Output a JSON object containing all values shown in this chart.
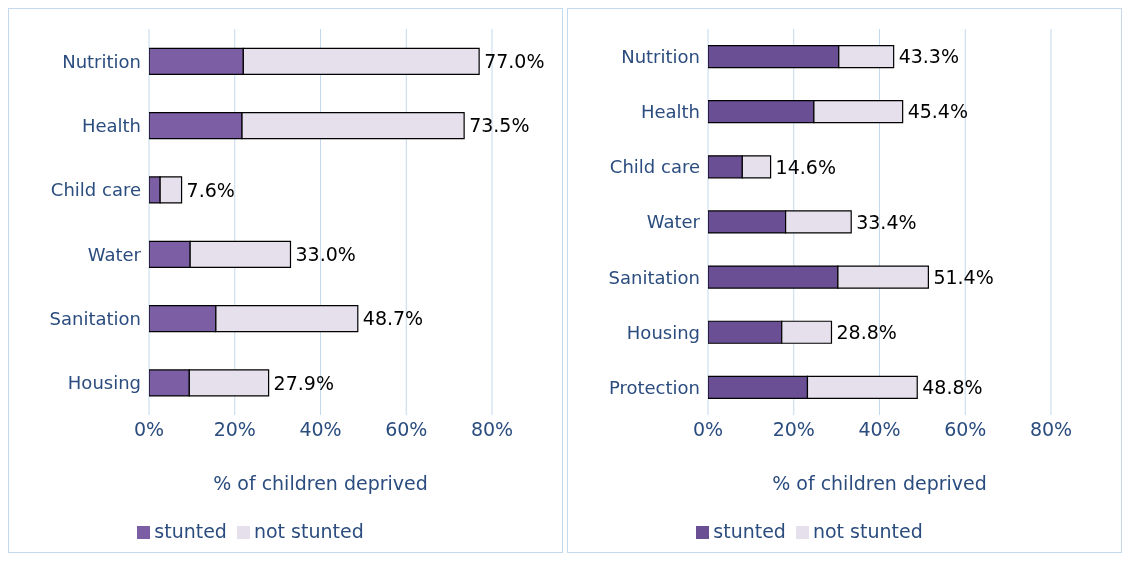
{
  "chart_data": [
    {
      "type": "bar",
      "orientation": "horizontal",
      "stacked": true,
      "categories": [
        "Nutrition",
        "Health",
        "Child care",
        "Water",
        "Sanitation",
        "Housing"
      ],
      "series": [
        {
          "name": "stunted",
          "color": "#7b5ea3",
          "values": [
            22.0,
            21.7,
            2.6,
            9.6,
            15.6,
            9.4
          ]
        },
        {
          "name": "not stunted",
          "color": "#e6e0ec",
          "values": [
            55.0,
            51.8,
            5.0,
            23.4,
            33.1,
            18.5
          ]
        }
      ],
      "totals": [
        "77.0%",
        "73.5%",
        "7.6%",
        "33.0%",
        "48.7%",
        "27.9%"
      ],
      "xlim": [
        0,
        80
      ],
      "xticks": [
        {
          "value": 0,
          "label": "0%"
        },
        {
          "value": 20,
          "label": "20%"
        },
        {
          "value": 40,
          "label": "40%"
        },
        {
          "value": 60,
          "label": "60%"
        },
        {
          "value": 80,
          "label": "80%"
        }
      ],
      "xlabel": "% of children deprived",
      "grid": "x",
      "legend": "bottom"
    },
    {
      "type": "bar",
      "orientation": "horizontal",
      "stacked": true,
      "categories": [
        "Nutrition",
        "Health",
        "Child care",
        "Water",
        "Sanitation",
        "Housing",
        "Protection"
      ],
      "series": [
        {
          "name": "stunted",
          "color": "#6a4f94",
          "values": [
            30.5,
            24.7,
            8.0,
            18.1,
            30.3,
            17.2,
            23.2
          ]
        },
        {
          "name": "not stunted",
          "color": "#e6e0ec",
          "values": [
            12.8,
            20.7,
            6.6,
            15.3,
            21.1,
            11.6,
            25.6
          ]
        }
      ],
      "totals": [
        "43.3%",
        "45.4%",
        "14.6%",
        "33.4%",
        "51.4%",
        "28.8%",
        "48.8%"
      ],
      "xlim": [
        0,
        80
      ],
      "xticks": [
        {
          "value": 0,
          "label": "0%"
        },
        {
          "value": 20,
          "label": "20%"
        },
        {
          "value": 40,
          "label": "40%"
        },
        {
          "value": 60,
          "label": "60%"
        },
        {
          "value": 80,
          "label": "80%"
        }
      ],
      "xlabel": "% of children deprived",
      "grid": "x",
      "legend": "bottom"
    }
  ]
}
